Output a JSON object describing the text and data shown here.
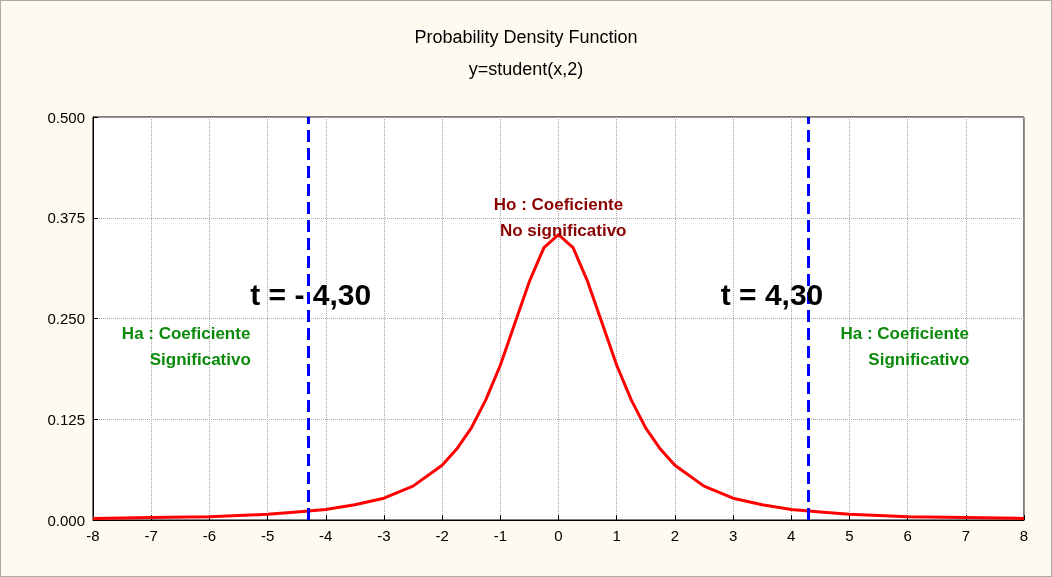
{
  "chart_data": {
    "type": "line",
    "title": "Probability Density Function",
    "subtitle": "y=student(x,2)",
    "x": [
      -8,
      -7,
      -6,
      -5,
      -4.5,
      -4,
      -3.5,
      -3,
      -2.5,
      -2,
      -1.75,
      -1.5,
      -1.25,
      -1,
      -0.75,
      -0.5,
      -0.25,
      0,
      0.25,
      0.5,
      0.75,
      1,
      1.25,
      1.5,
      1.75,
      2,
      2.5,
      3,
      3.5,
      4,
      4.5,
      5,
      6,
      7,
      8
    ],
    "series": [
      {
        "color": "#ff0000",
        "values": [
          0.002,
          0.003,
          0.004,
          0.007,
          0.01,
          0.013,
          0.019,
          0.027,
          0.042,
          0.068,
          0.088,
          0.114,
          0.149,
          0.192,
          0.244,
          0.296,
          0.338,
          0.354,
          0.338,
          0.296,
          0.244,
          0.192,
          0.149,
          0.114,
          0.088,
          0.068,
          0.042,
          0.027,
          0.019,
          0.013,
          0.01,
          0.007,
          0.004,
          0.003,
          0.002
        ]
      }
    ],
    "xlim": [
      -8,
      8
    ],
    "xticks": [
      -8,
      -7,
      -6,
      -5,
      -4,
      -3,
      -2,
      -1,
      0,
      1,
      2,
      3,
      4,
      5,
      6,
      7,
      8
    ],
    "ylim": [
      0,
      0.5
    ],
    "yticks": [
      {
        "value": 0,
        "label": "0.000"
      },
      {
        "value": 0.125,
        "label": "0.125"
      },
      {
        "value": 0.25,
        "label": "0.250"
      },
      {
        "value": 0.375,
        "label": "0.375"
      },
      {
        "value": 0.5,
        "label": "0.500"
      }
    ],
    "grid": true,
    "marker": "none",
    "line_style": "solid",
    "ref_lines": [
      {
        "axis": "x",
        "value": -4.3,
        "label": "t = - 4,30",
        "color": "#0000ff",
        "line_style": "dashed"
      },
      {
        "axis": "x",
        "value": 4.3,
        "label": "t = 4,30",
        "color": "#0000ff",
        "line_style": "dashed"
      }
    ],
    "annotations": [
      "Ho : Coeficiente\n  No significativo",
      "Ha : Coeficiente\n      Significativo",
      "Ha : Coeficiente\n      Significativo"
    ]
  }
}
